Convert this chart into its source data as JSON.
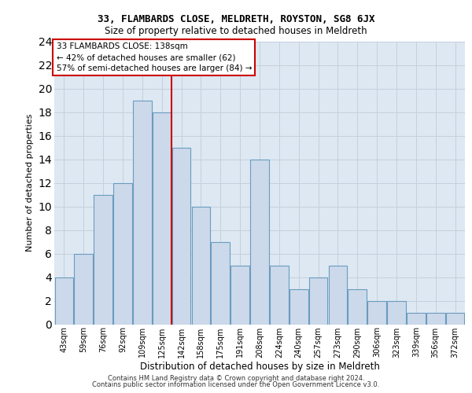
{
  "title1": "33, FLAMBARDS CLOSE, MELDRETH, ROYSTON, SG8 6JX",
  "title2": "Size of property relative to detached houses in Meldreth",
  "xlabel": "Distribution of detached houses by size in Meldreth",
  "ylabel": "Number of detached properties",
  "categories": [
    "43sqm",
    "59sqm",
    "76sqm",
    "92sqm",
    "109sqm",
    "125sqm",
    "142sqm",
    "158sqm",
    "175sqm",
    "191sqm",
    "208sqm",
    "224sqm",
    "240sqm",
    "257sqm",
    "273sqm",
    "290sqm",
    "306sqm",
    "323sqm",
    "339sqm",
    "356sqm",
    "372sqm"
  ],
  "values": [
    4,
    6,
    11,
    12,
    19,
    18,
    15,
    10,
    7,
    5,
    14,
    5,
    3,
    4,
    5,
    3,
    2,
    2,
    1,
    1,
    1
  ],
  "bar_color": "#ccd9ea",
  "bar_edge_color": "#6a9cbf",
  "red_line_x": 5.5,
  "annotation_line1": "33 FLAMBARDS CLOSE: 138sqm",
  "annotation_line2": "← 42% of detached houses are smaller (62)",
  "annotation_line3": "57% of semi-detached houses are larger (84) →",
  "annotation_box_edge_color": "#cc0000",
  "red_line_color": "#cc0000",
  "grid_color": "#c5d0dc",
  "background_color": "#dde8f2",
  "ylim": [
    0,
    24
  ],
  "yticks": [
    0,
    2,
    4,
    6,
    8,
    10,
    12,
    14,
    16,
    18,
    20,
    22,
    24
  ],
  "footer1": "Contains HM Land Registry data © Crown copyright and database right 2024.",
  "footer2": "Contains public sector information licensed under the Open Government Licence v3.0."
}
